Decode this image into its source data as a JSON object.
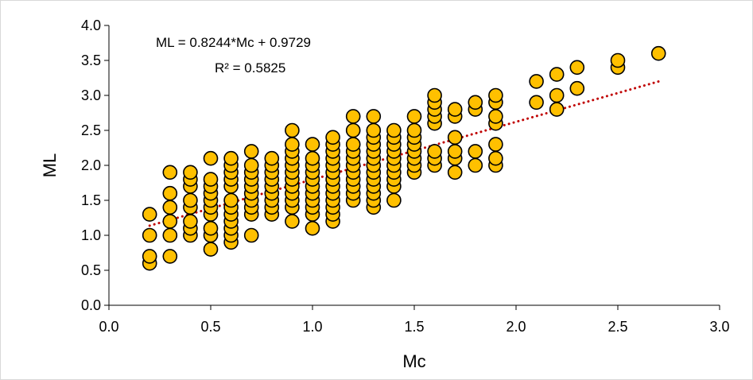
{
  "chart_data": {
    "type": "scatter",
    "xlabel": "Mc",
    "ylabel": "ML",
    "xlim": [
      0,
      3
    ],
    "ylim": [
      0,
      4
    ],
    "x_ticks": [
      "0.0",
      "0.5",
      "1.0",
      "1.5",
      "2.0",
      "2.5",
      "3.0"
    ],
    "y_ticks": [
      "0.0",
      "0.5",
      "1.0",
      "1.5",
      "2.0",
      "2.5",
      "3.0",
      "3.5",
      "4.0"
    ],
    "grid": false,
    "trendline": {
      "slope": 0.8244,
      "intercept": 0.9729,
      "x_range": [
        0.2,
        2.7
      ],
      "style": "dotted",
      "color": "#c00000",
      "equation_label": "ML = 0.8244*Mc + 0.9729",
      "r2_label": "R² = 0.5825"
    },
    "marker_fill": "#ffc000",
    "marker_stroke": "#000000",
    "points": [
      [
        0.2,
        0.6
      ],
      [
        0.2,
        0.7
      ],
      [
        0.2,
        1.0
      ],
      [
        0.2,
        1.3
      ],
      [
        0.3,
        0.7
      ],
      [
        0.3,
        1.0
      ],
      [
        0.3,
        1.2
      ],
      [
        0.3,
        1.4
      ],
      [
        0.3,
        1.6
      ],
      [
        0.3,
        1.9
      ],
      [
        0.4,
        1.0
      ],
      [
        0.4,
        1.1
      ],
      [
        0.4,
        1.2
      ],
      [
        0.4,
        1.4
      ],
      [
        0.4,
        1.5
      ],
      [
        0.4,
        1.7
      ],
      [
        0.4,
        1.8
      ],
      [
        0.4,
        1.9
      ],
      [
        0.5,
        0.8
      ],
      [
        0.5,
        1.0
      ],
      [
        0.5,
        1.1
      ],
      [
        0.5,
        1.3
      ],
      [
        0.5,
        1.4
      ],
      [
        0.5,
        1.5
      ],
      [
        0.5,
        1.6
      ],
      [
        0.5,
        1.7
      ],
      [
        0.5,
        1.8
      ],
      [
        0.5,
        2.1
      ],
      [
        0.6,
        0.9
      ],
      [
        0.6,
        1.0
      ],
      [
        0.6,
        1.1
      ],
      [
        0.6,
        1.2
      ],
      [
        0.6,
        1.3
      ],
      [
        0.6,
        1.4
      ],
      [
        0.6,
        1.5
      ],
      [
        0.6,
        1.7
      ],
      [
        0.6,
        1.8
      ],
      [
        0.6,
        1.9
      ],
      [
        0.6,
        2.0
      ],
      [
        0.6,
        2.1
      ],
      [
        0.7,
        1.0
      ],
      [
        0.7,
        1.3
      ],
      [
        0.7,
        1.4
      ],
      [
        0.7,
        1.5
      ],
      [
        0.7,
        1.6
      ],
      [
        0.7,
        1.7
      ],
      [
        0.7,
        1.8
      ],
      [
        0.7,
        1.9
      ],
      [
        0.7,
        2.0
      ],
      [
        0.7,
        2.2
      ],
      [
        0.8,
        1.3
      ],
      [
        0.8,
        1.4
      ],
      [
        0.8,
        1.5
      ],
      [
        0.8,
        1.6
      ],
      [
        0.8,
        1.7
      ],
      [
        0.8,
        1.8
      ],
      [
        0.8,
        1.9
      ],
      [
        0.8,
        2.0
      ],
      [
        0.8,
        2.1
      ],
      [
        0.9,
        1.2
      ],
      [
        0.9,
        1.4
      ],
      [
        0.9,
        1.5
      ],
      [
        0.9,
        1.6
      ],
      [
        0.9,
        1.7
      ],
      [
        0.9,
        1.8
      ],
      [
        0.9,
        1.9
      ],
      [
        0.9,
        2.0
      ],
      [
        0.9,
        2.1
      ],
      [
        0.9,
        2.2
      ],
      [
        0.9,
        2.3
      ],
      [
        0.9,
        2.5
      ],
      [
        1.0,
        1.1
      ],
      [
        1.0,
        1.3
      ],
      [
        1.0,
        1.4
      ],
      [
        1.0,
        1.5
      ],
      [
        1.0,
        1.6
      ],
      [
        1.0,
        1.7
      ],
      [
        1.0,
        1.8
      ],
      [
        1.0,
        1.9
      ],
      [
        1.0,
        2.0
      ],
      [
        1.0,
        2.1
      ],
      [
        1.0,
        2.3
      ],
      [
        1.1,
        1.2
      ],
      [
        1.1,
        1.3
      ],
      [
        1.1,
        1.4
      ],
      [
        1.1,
        1.5
      ],
      [
        1.1,
        1.6
      ],
      [
        1.1,
        1.7
      ],
      [
        1.1,
        1.8
      ],
      [
        1.1,
        1.9
      ],
      [
        1.1,
        2.0
      ],
      [
        1.1,
        2.1
      ],
      [
        1.1,
        2.2
      ],
      [
        1.1,
        2.3
      ],
      [
        1.1,
        2.4
      ],
      [
        1.2,
        1.5
      ],
      [
        1.2,
        1.6
      ],
      [
        1.2,
        1.7
      ],
      [
        1.2,
        1.8
      ],
      [
        1.2,
        1.9
      ],
      [
        1.2,
        2.0
      ],
      [
        1.2,
        2.1
      ],
      [
        1.2,
        2.2
      ],
      [
        1.2,
        2.3
      ],
      [
        1.2,
        2.5
      ],
      [
        1.2,
        2.7
      ],
      [
        1.3,
        1.4
      ],
      [
        1.3,
        1.5
      ],
      [
        1.3,
        1.6
      ],
      [
        1.3,
        1.7
      ],
      [
        1.3,
        1.8
      ],
      [
        1.3,
        1.9
      ],
      [
        1.3,
        2.0
      ],
      [
        1.3,
        2.1
      ],
      [
        1.3,
        2.2
      ],
      [
        1.3,
        2.3
      ],
      [
        1.3,
        2.4
      ],
      [
        1.3,
        2.5
      ],
      [
        1.3,
        2.7
      ],
      [
        1.4,
        1.5
      ],
      [
        1.4,
        1.7
      ],
      [
        1.4,
        1.8
      ],
      [
        1.4,
        1.9
      ],
      [
        1.4,
        2.0
      ],
      [
        1.4,
        2.1
      ],
      [
        1.4,
        2.2
      ],
      [
        1.4,
        2.3
      ],
      [
        1.4,
        2.4
      ],
      [
        1.4,
        2.5
      ],
      [
        1.5,
        1.9
      ],
      [
        1.5,
        2.0
      ],
      [
        1.5,
        2.1
      ],
      [
        1.5,
        2.2
      ],
      [
        1.5,
        2.3
      ],
      [
        1.5,
        2.4
      ],
      [
        1.5,
        2.5
      ],
      [
        1.5,
        2.7
      ],
      [
        1.6,
        2.0
      ],
      [
        1.6,
        2.1
      ],
      [
        1.6,
        2.2
      ],
      [
        1.6,
        2.6
      ],
      [
        1.6,
        2.7
      ],
      [
        1.6,
        2.8
      ],
      [
        1.6,
        2.9
      ],
      [
        1.6,
        3.0
      ],
      [
        1.7,
        1.9
      ],
      [
        1.7,
        2.1
      ],
      [
        1.7,
        2.2
      ],
      [
        1.7,
        2.4
      ],
      [
        1.7,
        2.7
      ],
      [
        1.7,
        2.8
      ],
      [
        1.8,
        2.0
      ],
      [
        1.8,
        2.2
      ],
      [
        1.8,
        2.8
      ],
      [
        1.8,
        2.9
      ],
      [
        1.9,
        2.0
      ],
      [
        1.9,
        2.1
      ],
      [
        1.9,
        2.3
      ],
      [
        1.9,
        2.6
      ],
      [
        1.9,
        2.7
      ],
      [
        1.9,
        2.9
      ],
      [
        1.9,
        3.0
      ],
      [
        2.1,
        2.9
      ],
      [
        2.1,
        3.2
      ],
      [
        2.2,
        2.8
      ],
      [
        2.2,
        3.0
      ],
      [
        2.2,
        3.3
      ],
      [
        2.3,
        3.1
      ],
      [
        2.3,
        3.4
      ],
      [
        2.5,
        3.4
      ],
      [
        2.5,
        3.5
      ],
      [
        2.7,
        3.6
      ]
    ]
  }
}
